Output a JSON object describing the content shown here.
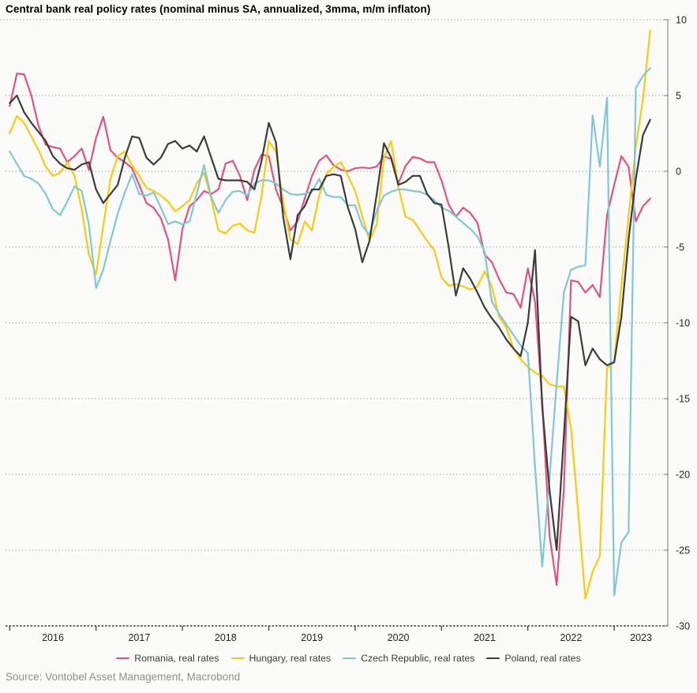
{
  "header": {
    "title": "Central bank real policy rates (nominal minus SA, annualized, 3mma, m/m inflaton)"
  },
  "footer": {
    "source": "Source: Vontobel Asset Management, Macrobond"
  },
  "colors": {
    "background": "#fbfbf9",
    "grid": "#a9a9a9",
    "right_axis": "#858585",
    "bottom_axis": "#3a3a3a",
    "tick_label": "#1f1f1f",
    "source_text": "#8f8f8f"
  },
  "chart_data": {
    "type": "line",
    "title": "Central bank real policy rates (nominal minus SA, annualized, 3mma, m/m inflaton)",
    "x_unit": "month",
    "x_start": "2016-01",
    "x_end": "2023-06",
    "x_tick_labels": [
      "2016",
      "2017",
      "2018",
      "2019",
      "2020",
      "2021",
      "2022",
      "2023"
    ],
    "ylim": [
      -30,
      10
    ],
    "yticks": [
      10,
      5,
      0,
      -5,
      -10,
      -15,
      -20,
      -25,
      -30
    ],
    "grid": "horizontal-dotted",
    "legend_position": "bottom",
    "series": [
      {
        "name": "Romania, real rates",
        "color": "#e2537b",
        "values": [
          4.3,
          6.45,
          6.4,
          5.0,
          3.0,
          1.75,
          1.6,
          1.5,
          0.6,
          1.0,
          1.5,
          0.1,
          2.2,
          3.6,
          1.4,
          0.9,
          0.6,
          0.2,
          -0.9,
          -2.1,
          -2.4,
          -3.1,
          -4.5,
          -7.2,
          -3.8,
          -2.3,
          -1.9,
          -1.3,
          -1.5,
          -1.2,
          0.5,
          0.7,
          -0.3,
          -1.9,
          0.1,
          1.1,
          1.0,
          -1.2,
          -2.4,
          -3.9,
          -3.3,
          -1.8,
          -0.3,
          0.7,
          1.05,
          0.4,
          0.1,
          0.0,
          0.2,
          0.25,
          0.2,
          0.3,
          1.0,
          0.8,
          -0.8,
          0.35,
          0.95,
          0.85,
          0.6,
          0.6,
          -0.6,
          -2.2,
          -3.0,
          -2.4,
          -2.75,
          -3.4,
          -5.5,
          -6.0,
          -7.1,
          -8.0,
          -8.1,
          -9.0,
          -6.4,
          -8.6,
          -15.2,
          -24.0,
          -27.3,
          -21.0,
          -7.2,
          -7.3,
          -8.0,
          -7.5,
          -8.3,
          -2.9,
          -0.9,
          1.0,
          0.3,
          -3.3,
          -2.3,
          -1.8
        ]
      },
      {
        "name": "Hungary, real rates",
        "color": "#fbc90d",
        "values": [
          2.5,
          3.65,
          3.2,
          2.3,
          1.4,
          0.3,
          -0.3,
          -0.1,
          0.6,
          -0.3,
          -2.5,
          -5.5,
          -6.8,
          -3.6,
          -0.5,
          1.0,
          1.3,
          0.4,
          -0.3,
          -1.1,
          -1.3,
          -1.6,
          -2.0,
          -2.65,
          -2.3,
          -1.9,
          -0.8,
          -0.1,
          -1.8,
          -3.9,
          -4.1,
          -3.6,
          -3.45,
          -3.9,
          -4.05,
          -1.6,
          2.0,
          1.3,
          -2.0,
          -4.5,
          -4.8,
          -3.3,
          -3.9,
          -1.6,
          -0.2,
          0.3,
          0.6,
          -0.3,
          -1.3,
          -3.0,
          -4.55,
          -3.5,
          0.9,
          2.0,
          -1.0,
          -3.0,
          -3.2,
          -3.9,
          -4.6,
          -5.2,
          -7.0,
          -7.55,
          -7.45,
          -7.6,
          -7.8,
          -7.6,
          -6.6,
          -7.6,
          -9.6,
          -10.3,
          -11.7,
          -12.4,
          -12.9,
          -13.3,
          -13.5,
          -14.05,
          -14.2,
          -14.2,
          -17.0,
          -22.5,
          -28.2,
          -26.4,
          -25.4,
          -13.0,
          -12.6,
          -7.5,
          -3.0,
          1.6,
          4.8,
          9.3
        ]
      },
      {
        "name": "Czech Republic, real rates",
        "color": "#7fc7d7",
        "values": [
          1.3,
          0.5,
          -0.3,
          -0.5,
          -0.8,
          -1.5,
          -2.5,
          -2.9,
          -2.0,
          -1.0,
          -1.3,
          -3.5,
          -7.7,
          -6.5,
          -4.6,
          -2.8,
          -1.4,
          -0.2,
          -1.5,
          -1.6,
          -1.4,
          -2.4,
          -3.5,
          -3.3,
          -3.5,
          -3.3,
          -1.5,
          0.4,
          -1.7,
          -2.75,
          -1.9,
          -1.35,
          -1.3,
          -1.6,
          -0.8,
          -0.6,
          -0.6,
          -0.8,
          -1.2,
          -1.5,
          -1.55,
          -1.5,
          -1.35,
          -0.5,
          -1.55,
          -1.7,
          -1.7,
          -2.25,
          -2.25,
          -3.6,
          -4.2,
          -2.6,
          -1.6,
          -1.35,
          -1.2,
          -1.2,
          -1.3,
          -1.35,
          -1.55,
          -1.9,
          -2.4,
          -2.6,
          -3.0,
          -3.4,
          -3.8,
          -4.3,
          -5.3,
          -8.6,
          -9.4,
          -10.1,
          -10.8,
          -11.5,
          -12.0,
          -19.5,
          -26.1,
          -20.3,
          -14.0,
          -8.0,
          -6.5,
          -6.3,
          -6.2,
          3.7,
          0.3,
          4.85,
          -28.0,
          -24.5,
          -23.8,
          5.5,
          6.3,
          6.8
        ]
      },
      {
        "name": "Poland, real rates",
        "color": "#3b3b3b",
        "values": [
          4.5,
          5.0,
          3.9,
          3.2,
          2.6,
          2.0,
          1.0,
          0.5,
          0.2,
          0.1,
          0.45,
          0.6,
          -1.2,
          -2.1,
          -1.5,
          -0.9,
          0.9,
          2.3,
          2.2,
          0.9,
          0.45,
          0.9,
          1.8,
          2.0,
          1.5,
          1.7,
          1.3,
          2.3,
          0.9,
          -0.5,
          -0.6,
          -0.6,
          -0.6,
          -0.7,
          -1.2,
          0.7,
          3.2,
          1.9,
          -3.0,
          -5.8,
          -2.9,
          -2.3,
          -1.2,
          -1.2,
          -0.3,
          -0.2,
          -0.3,
          -2.4,
          -3.8,
          -6.0,
          -4.6,
          -1.5,
          1.85,
          0.9,
          -0.9,
          -0.7,
          -0.3,
          -0.3,
          -1.5,
          -2.1,
          -2.2,
          -5.0,
          -8.2,
          -6.4,
          -7.1,
          -8.0,
          -9.0,
          -9.7,
          -10.3,
          -11.1,
          -11.7,
          -12.2,
          -10.0,
          -5.2,
          -15.5,
          -21.0,
          -25.0,
          -17.5,
          -9.6,
          -9.9,
          -12.8,
          -11.7,
          -12.4,
          -12.8,
          -12.6,
          -9.6,
          -4.5,
          -0.5,
          2.4,
          3.4
        ]
      }
    ]
  }
}
